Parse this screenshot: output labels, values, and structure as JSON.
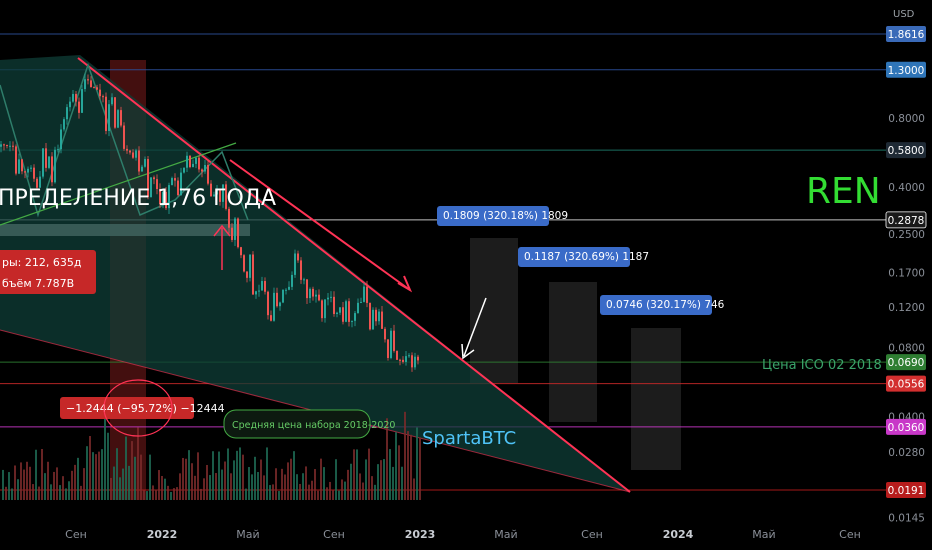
{
  "chart_data": {
    "type": "candlestick",
    "title": "REN",
    "watermark": "SpartaBTC",
    "y_axis": {
      "currency": "USD",
      "scale": "log",
      "range": [
        0.0135,
        2.3
      ],
      "ticks": [
        0.8,
        0.4,
        0.25,
        0.17,
        0.12,
        0.08,
        0.04,
        0.028,
        0.0145
      ]
    },
    "x_axis": {
      "ticks": [
        "Сен",
        "2022",
        "Май",
        "Сен",
        "2023",
        "Май",
        "Сен",
        "2024",
        "Май",
        "Сен"
      ],
      "bold_ticks": [
        "2022",
        "2023",
        "2024"
      ]
    },
    "price_levels": [
      {
        "label": "1.8616",
        "value": 1.8616,
        "color": "#3a6ab8",
        "line": "#2c4f99"
      },
      {
        "label": "1.3000",
        "value": 1.3,
        "color": "#2f75b8",
        "line": "#2c4f99"
      },
      {
        "label": "0.5800",
        "value": 0.58,
        "color": "#1f2a35",
        "line": "#1f7a6a"
      },
      {
        "label": "0.2878",
        "value": 0.2878,
        "color": "#1a1a1a",
        "line": "#d8d8d8"
      },
      {
        "label": "0.0690",
        "value": 0.069,
        "color": "#2e7d32",
        "line": "#2e7d32"
      },
      {
        "label": "0.0556",
        "value": 0.0556,
        "color": "#d32f2f",
        "line": "#c62828"
      },
      {
        "label": "0.0360",
        "value": 0.036,
        "color": "#c838c8",
        "line": "#c838c8"
      },
      {
        "label": "0.0191",
        "value": 0.0191,
        "color": "#b71c1c",
        "line": "#b71c1c"
      }
    ],
    "annotations": {
      "distribution_banner": "ПРЕДЕЛЕНИЕ 1,76 ГОДА",
      "bars_text": "ры: 212, 635д",
      "volume_text": "бъём 7.787B",
      "drop_measure": "−1.2444 (−95.72%) −12444",
      "avg_price_note": "Средняя цена набора 2018-2020",
      "ico_price": "Цена ICO 02 2018",
      "targets": [
        {
          "label": "0.1809 (320.18%) 1809",
          "value": 0.1809
        },
        {
          "label": "0.1187 (320.69%) 1187",
          "value": 0.1187
        },
        {
          "label": "0.0746 (320.17%) 746",
          "value": 0.0746
        }
      ]
    },
    "price_path": [
      [
        0.6,
        0.62
      ],
      [
        0.45,
        0.58
      ],
      [
        0.33,
        0.5
      ],
      [
        0.4,
        0.62
      ],
      [
        0.55,
        0.85
      ],
      [
        0.8,
        1.1
      ],
      [
        1.05,
        1.2
      ],
      [
        0.9,
        1.15
      ],
      [
        0.7,
        1.0
      ],
      [
        0.55,
        0.8
      ],
      [
        0.45,
        0.65
      ],
      [
        0.35,
        0.48
      ],
      [
        0.32,
        0.42
      ],
      [
        0.36,
        0.5
      ],
      [
        0.45,
        0.55
      ],
      [
        0.4,
        0.5
      ],
      [
        0.3,
        0.42
      ],
      [
        0.2,
        0.35
      ],
      [
        0.14,
        0.22
      ],
      [
        0.12,
        0.16
      ],
      [
        0.1,
        0.14
      ],
      [
        0.11,
        0.16
      ],
      [
        0.14,
        0.22
      ],
      [
        0.12,
        0.16
      ],
      [
        0.1,
        0.14
      ],
      [
        0.11,
        0.14
      ],
      [
        0.1,
        0.13
      ],
      [
        0.11,
        0.15
      ],
      [
        0.09,
        0.13
      ],
      [
        0.07,
        0.1
      ],
      [
        0.058,
        0.075
      ],
      [
        0.065,
        0.075
      ]
    ]
  }
}
